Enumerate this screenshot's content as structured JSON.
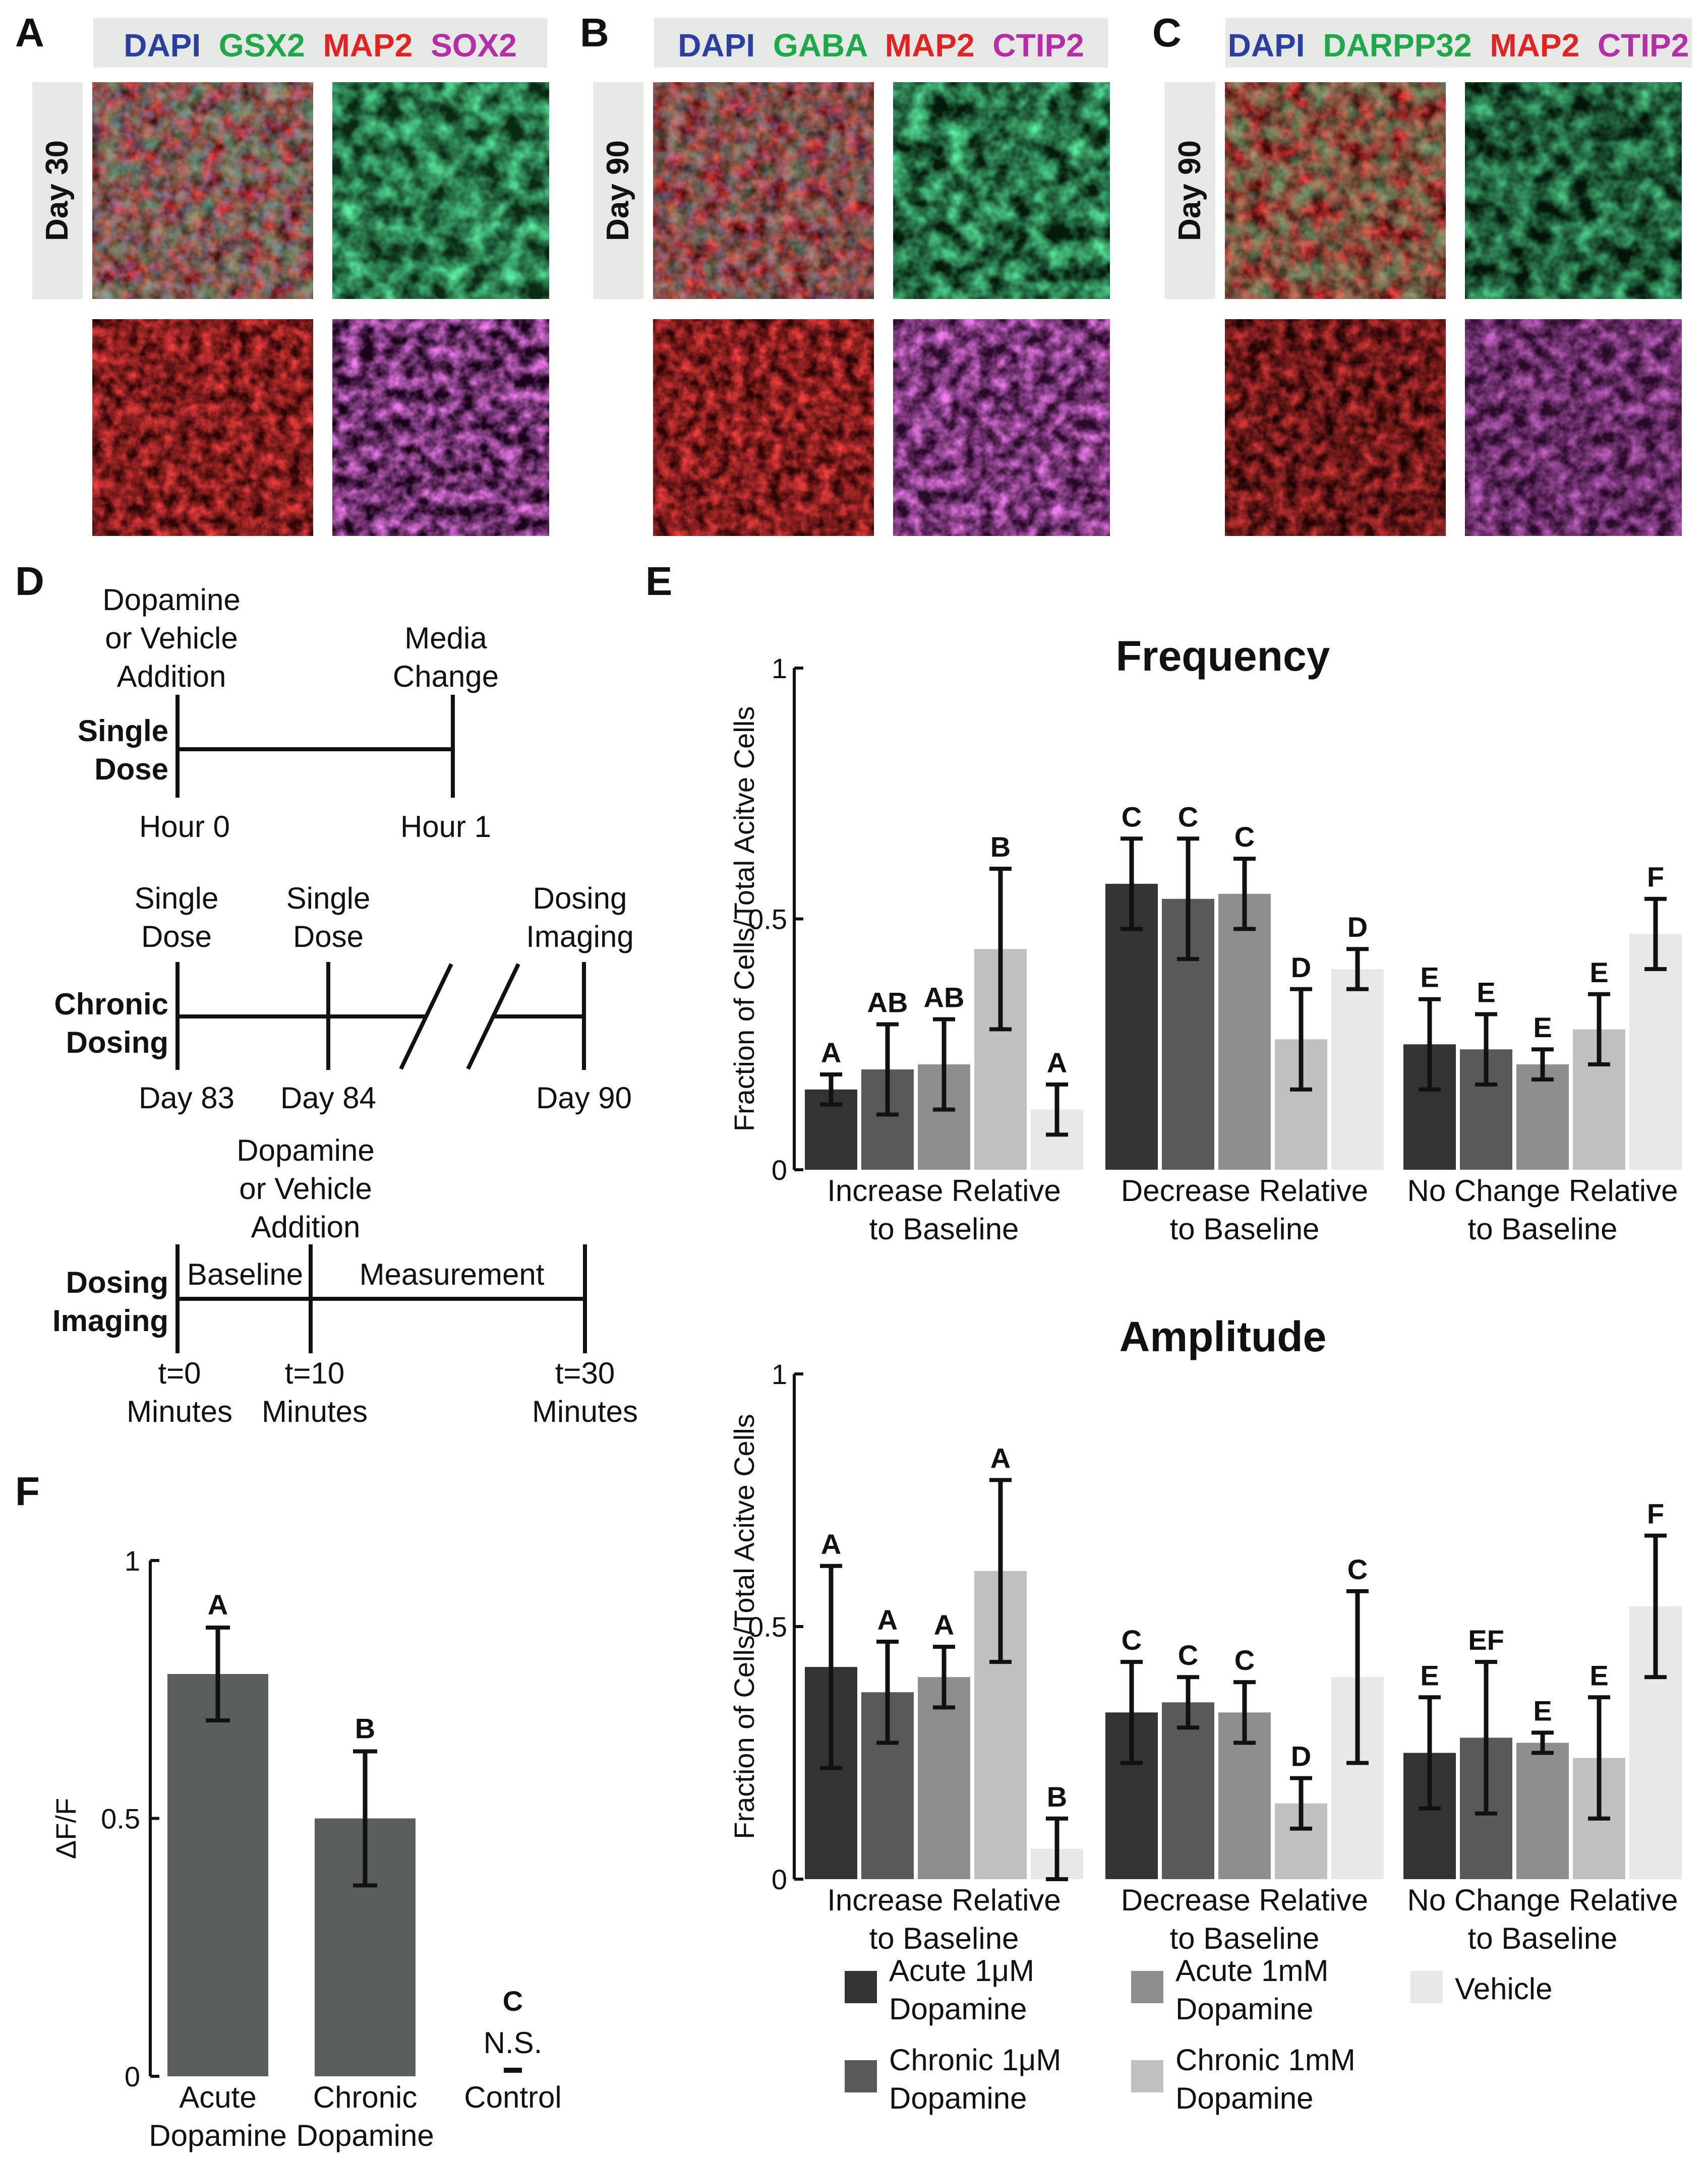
{
  "panels": {
    "A": {
      "label": "A",
      "header": [
        {
          "text": "DAPI",
          "color": "#2a3f9e"
        },
        {
          "text": "GSX2",
          "color": "#1fa84a"
        },
        {
          "text": "MAP2",
          "color": "#e02424"
        },
        {
          "text": "SOX2",
          "color": "#b62ea6"
        }
      ],
      "day": "Day 30",
      "tiles": [
        "merge",
        "green",
        "red",
        "magenta"
      ]
    },
    "B": {
      "label": "B",
      "header": [
        {
          "text": "DAPI",
          "color": "#2a3f9e"
        },
        {
          "text": "GABA",
          "color": "#1fa84a"
        },
        {
          "text": "MAP2",
          "color": "#e02424"
        },
        {
          "text": "CTIP2",
          "color": "#b62ea6"
        }
      ],
      "day": "Day 90",
      "tiles": [
        "merge",
        "green",
        "red",
        "magenta"
      ]
    },
    "C": {
      "label": "C",
      "header": [
        {
          "text": "DAPI",
          "color": "#2a3f9e"
        },
        {
          "text": "DARPP32",
          "color": "#1fa84a"
        },
        {
          "text": "MAP2",
          "color": "#e02424"
        },
        {
          "text": "CTIP2",
          "color": "#b62ea6"
        }
      ],
      "day": "Day 90",
      "tiles": [
        "merge",
        "green",
        "red",
        "magenta"
      ]
    },
    "D": {
      "label": "D",
      "single": {
        "title": [
          "Single",
          "Dose"
        ],
        "start_top": [
          "Dopamine",
          "or Vehicle",
          "Addition"
        ],
        "end_top": [
          "Media",
          "Change"
        ],
        "start_bottom": "Hour 0",
        "end_bottom": "Hour 1"
      },
      "chronic": {
        "title": [
          "Chronic",
          "Dosing"
        ],
        "t1_top": [
          "Single",
          "Dose"
        ],
        "t2_top": [
          "Single",
          "Dose"
        ],
        "t3_top": [
          "Dosing",
          "Imaging"
        ],
        "t1_bottom": "Day 83",
        "t2_bottom": "Day 84",
        "t3_bottom": "Day 90"
      },
      "imaging": {
        "title": [
          "Dosing",
          "Imaging"
        ],
        "mid_top": [
          "Dopamine",
          "or Vehicle",
          "Addition"
        ],
        "seg1": "Baseline",
        "seg2": "Measurement",
        "t1_bottom": [
          "t=0",
          "Minutes"
        ],
        "t2_bottom": [
          "t=10",
          "Minutes"
        ],
        "t3_bottom": [
          "t=30",
          "Minutes"
        ]
      }
    },
    "E": {
      "label": "E"
    },
    "F": {
      "label": "F"
    }
  },
  "legend": {
    "items": [
      {
        "name": [
          "Acute 1μM",
          "Dopamine"
        ],
        "color": "#333333"
      },
      {
        "name": [
          "Acute 1mM",
          "Dopamine"
        ],
        "color": "#8d8e90"
      },
      {
        "name": [
          "Vehicle"
        ],
        "color": "#e6e8ea"
      },
      {
        "name": [
          "Chronic 1μM",
          "Dopamine"
        ],
        "color": "#58595b"
      },
      {
        "name": [
          "Chronic 1mM",
          "Dopamine"
        ],
        "color": "#bfc0c2"
      }
    ]
  },
  "chart_data": [
    {
      "type": "bar",
      "title": "Frequency",
      "ylabel": "Fraction of Cells/Total Acitve Cells",
      "ylim": [
        0,
        1
      ],
      "yticks": [
        "0",
        "0.5",
        "1"
      ],
      "categories": [
        [
          "Increase Relative",
          "to Baseline"
        ],
        [
          "Decrease Relative",
          "to Baseline"
        ],
        [
          "No Change Relative",
          "to Baseline"
        ]
      ],
      "series": [
        {
          "name": "Acute 1μM Dopamine",
          "color": "#333333",
          "values": [
            0.16,
            0.57,
            0.25
          ],
          "err": [
            0.03,
            0.09,
            0.09
          ],
          "sig": [
            "A",
            "C",
            "E"
          ]
        },
        {
          "name": "Chronic 1μM Dopamine",
          "color": "#58595b",
          "values": [
            0.2,
            0.54,
            0.24
          ],
          "err": [
            0.09,
            0.12,
            0.07
          ],
          "sig": [
            "AB",
            "C",
            "E"
          ]
        },
        {
          "name": "Acute 1mM Dopamine",
          "color": "#8d8e90",
          "values": [
            0.21,
            0.55,
            0.21
          ],
          "err": [
            0.09,
            0.07,
            0.03
          ],
          "sig": [
            "AB",
            "C",
            "E"
          ]
        },
        {
          "name": "Chronic 1mM Dopamine",
          "color": "#bfc0c2",
          "values": [
            0.44,
            0.26,
            0.28
          ],
          "err": [
            0.16,
            0.1,
            0.07
          ],
          "sig": [
            "B",
            "D",
            "E"
          ]
        },
        {
          "name": "Vehicle",
          "color": "#e6e8ea",
          "values": [
            0.12,
            0.4,
            0.47
          ],
          "err": [
            0.05,
            0.04,
            0.07
          ],
          "sig": [
            "A",
            "D",
            "F"
          ]
        }
      ]
    },
    {
      "type": "bar",
      "title": "Amplitude",
      "ylabel": "Fraction of Cells/Total Acitve Cells",
      "ylim": [
        0,
        1
      ],
      "yticks": [
        "0",
        "0.5",
        "1"
      ],
      "categories": [
        [
          "Increase Relative",
          "to Baseline"
        ],
        [
          "Decrease Relative",
          "to Baseline"
        ],
        [
          "No Change Relative",
          "to Baseline"
        ]
      ],
      "series": [
        {
          "name": "Acute 1μM Dopamine",
          "color": "#333333",
          "values": [
            0.42,
            0.33,
            0.25
          ],
          "err": [
            0.2,
            0.1,
            0.11
          ],
          "sig": [
            "A",
            "C",
            "E"
          ]
        },
        {
          "name": "Chronic 1μM Dopamine",
          "color": "#58595b",
          "values": [
            0.37,
            0.35,
            0.28
          ],
          "err": [
            0.1,
            0.05,
            0.15
          ],
          "sig": [
            "A",
            "C",
            "EF"
          ]
        },
        {
          "name": "Acute 1mM Dopamine",
          "color": "#8d8e90",
          "values": [
            0.4,
            0.33,
            0.27
          ],
          "err": [
            0.06,
            0.06,
            0.02
          ],
          "sig": [
            "A",
            "C",
            "E"
          ]
        },
        {
          "name": "Chronic 1mM Dopamine",
          "color": "#bfc0c2",
          "values": [
            0.61,
            0.15,
            0.24
          ],
          "err": [
            0.18,
            0.05,
            0.12
          ],
          "sig": [
            "A",
            "D",
            "E"
          ]
        },
        {
          "name": "Vehicle",
          "color": "#e6e8ea",
          "values": [
            0.06,
            0.4,
            0.54
          ],
          "err": [
            0.06,
            0.17,
            0.14
          ],
          "sig": [
            "B",
            "C",
            "F"
          ]
        }
      ]
    },
    {
      "type": "bar",
      "ylabel": "ΔF/F",
      "ylim": [
        0,
        1
      ],
      "yticks": [
        "0",
        "0.5",
        "1"
      ],
      "categories": [
        [
          "Acute",
          "Dopamine"
        ],
        [
          "Chronic",
          "Dopamine"
        ],
        [
          "Control"
        ]
      ],
      "values": [
        0.78,
        0.5,
        0.0
      ],
      "err": [
        0.09,
        0.13,
        0
      ],
      "sig": [
        "A",
        "B",
        "C"
      ],
      "annotation": "N.S.",
      "color": "#5a5e5c"
    }
  ]
}
